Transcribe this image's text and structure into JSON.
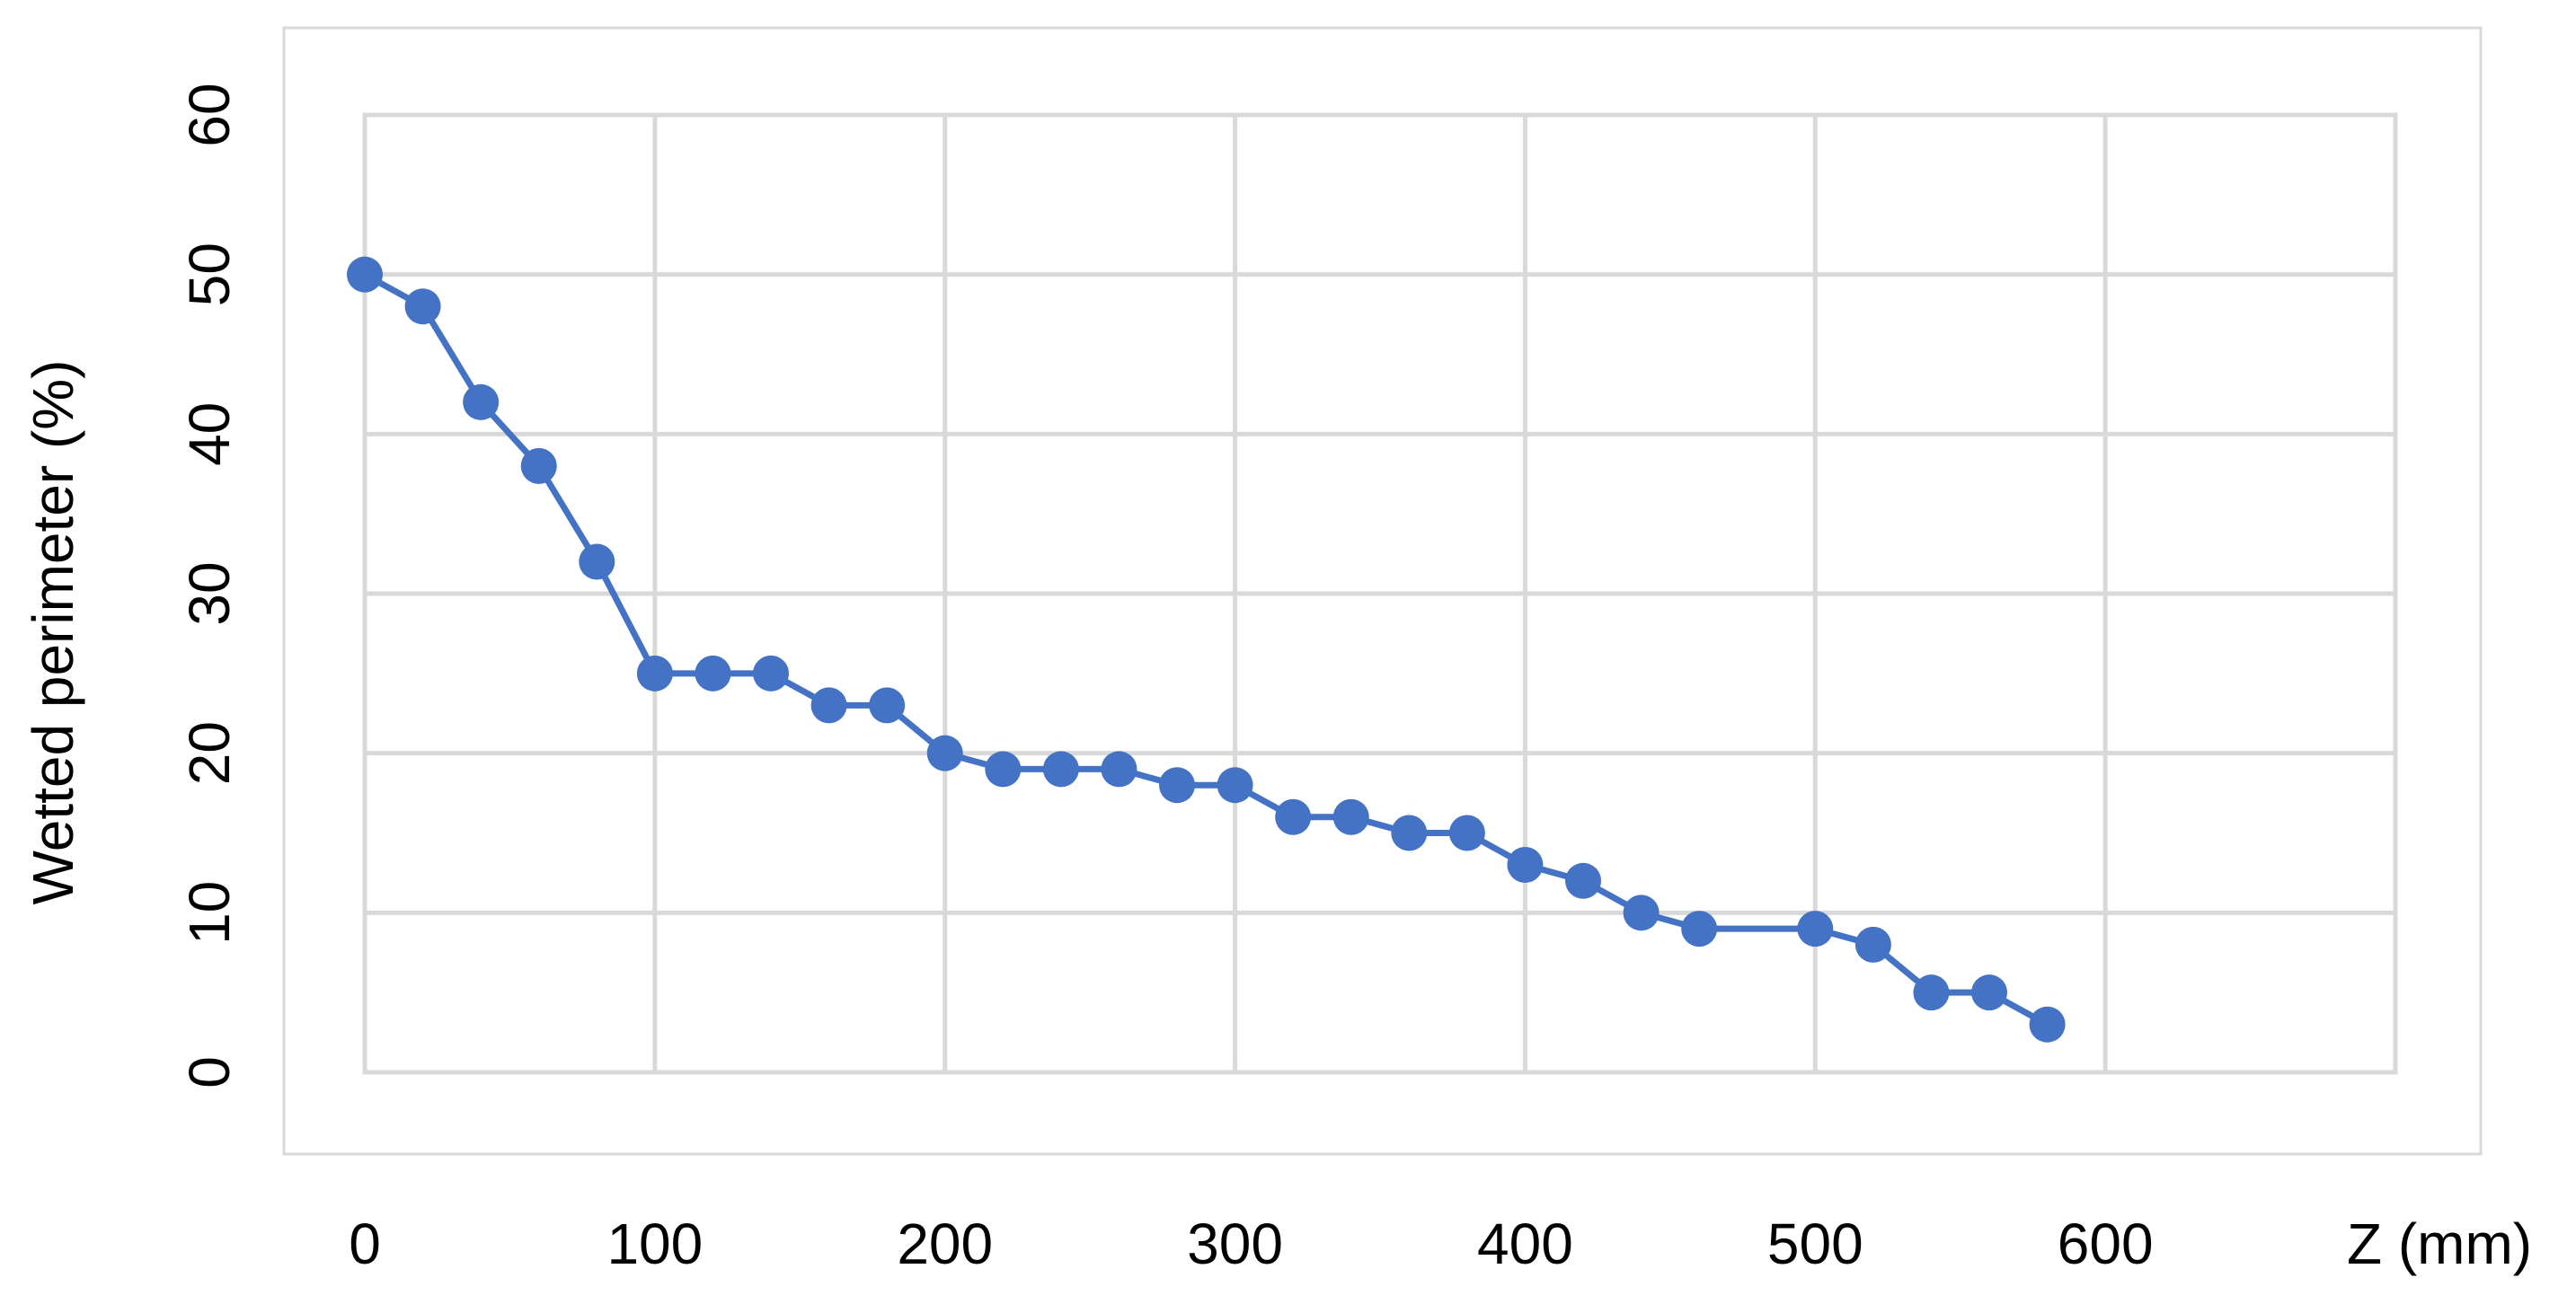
{
  "chart_data": {
    "type": "line",
    "ylabel": "Wetted perimeter (%)",
    "xlabel": "Z (mm)",
    "x": [
      0,
      20,
      40,
      60,
      80,
      100,
      120,
      140,
      160,
      180,
      200,
      220,
      240,
      260,
      280,
      300,
      320,
      340,
      360,
      380,
      400,
      420,
      440,
      460,
      500,
      520,
      540,
      560,
      580
    ],
    "series": [
      {
        "name": "Wetted perimeter",
        "color": "#4472c4",
        "values": [
          50,
          48,
          42,
          38,
          32,
          25,
          25,
          25,
          23,
          23,
          20,
          19,
          19,
          19,
          18,
          18,
          16,
          16,
          15,
          15,
          13,
          12,
          10,
          9,
          9,
          8,
          5,
          5,
          3
        ]
      }
    ],
    "xlim": [
      0,
      700
    ],
    "xticks": [
      0,
      100,
      200,
      300,
      400,
      500,
      600
    ],
    "ylim": [
      0,
      60
    ],
    "yticks": [
      0,
      10,
      20,
      30,
      40,
      50,
      60
    ],
    "grid": true
  }
}
